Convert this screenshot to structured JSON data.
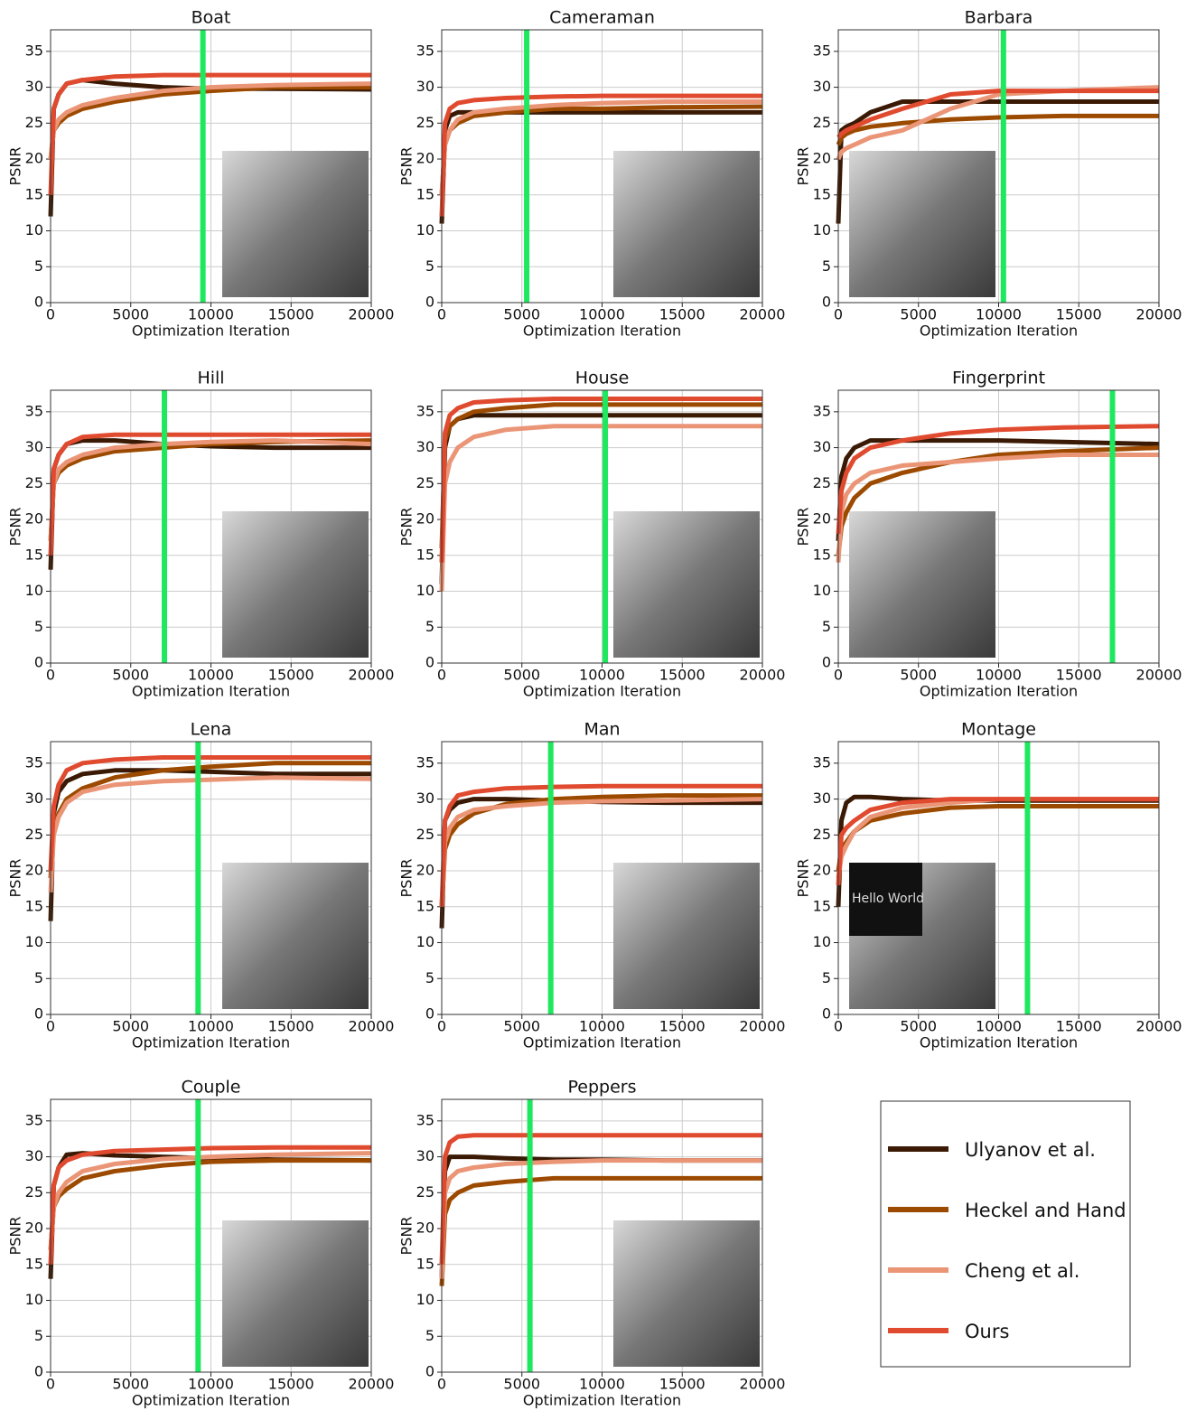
{
  "chart_data": [
    {
      "type": "line",
      "title": "Boat",
      "xlabel": "Optimization Iteration",
      "ylabel": "PSNR",
      "x": [
        0,
        200,
        500,
        1000,
        2000,
        4000,
        7000,
        10000,
        14000,
        20000
      ],
      "xlim": [
        0,
        20000
      ],
      "ylim": [
        0,
        38
      ],
      "xticks": [
        0,
        5000,
        10000,
        15000,
        20000
      ],
      "yticks": [
        0,
        5,
        10,
        15,
        20,
        25,
        30,
        35
      ],
      "grid": true,
      "vline": 9500,
      "vline_color": "#1de85e",
      "inset": "right",
      "series": [
        {
          "color": "#3b1a05",
          "values": [
            12,
            27,
            29,
            30.5,
            31,
            30.5,
            30,
            29.8,
            29.8,
            29.7
          ]
        },
        {
          "color": "#9c4a00",
          "values": [
            20,
            24,
            25,
            26,
            27,
            28,
            29,
            29.5,
            30,
            30
          ]
        },
        {
          "color": "#eb9577",
          "values": [
            20,
            24,
            25.5,
            26.5,
            27.5,
            28.5,
            29.5,
            30,
            30.3,
            30.5
          ]
        },
        {
          "color": "#e04a2f",
          "values": [
            15,
            27,
            29,
            30.5,
            31,
            31.5,
            31.7,
            31.7,
            31.7,
            31.7
          ]
        }
      ]
    },
    {
      "type": "line",
      "title": "Cameraman",
      "xlabel": "Optimization Iteration",
      "ylabel": "PSNR",
      "x": [
        0,
        200,
        500,
        1000,
        2000,
        4000,
        7000,
        10000,
        14000,
        20000
      ],
      "xlim": [
        0,
        20000
      ],
      "ylim": [
        0,
        38
      ],
      "xticks": [
        0,
        5000,
        10000,
        15000,
        20000
      ],
      "yticks": [
        0,
        5,
        10,
        15,
        20,
        25,
        30,
        35
      ],
      "grid": true,
      "vline": 5300,
      "vline_color": "#1de85e",
      "inset": "right",
      "series": [
        {
          "color": "#3b1a05",
          "values": [
            11,
            24,
            26,
            26.5,
            26.5,
            26.5,
            26.5,
            26.5,
            26.5,
            26.5
          ]
        },
        {
          "color": "#9c4a00",
          "values": [
            15,
            22,
            24,
            25,
            26,
            26.5,
            27,
            27,
            27.2,
            27.3
          ]
        },
        {
          "color": "#eb9577",
          "values": [
            15,
            22,
            24,
            25.5,
            26.5,
            27,
            27.5,
            27.8,
            28,
            28
          ]
        },
        {
          "color": "#e04a2f",
          "values": [
            12,
            25,
            27,
            27.8,
            28.2,
            28.5,
            28.7,
            28.8,
            28.8,
            28.8
          ]
        }
      ]
    },
    {
      "type": "line",
      "title": "Barbara",
      "xlabel": "Optimization Iteration",
      "ylabel": "PSNR",
      "x": [
        0,
        200,
        500,
        1000,
        2000,
        4000,
        7000,
        10000,
        14000,
        20000
      ],
      "xlim": [
        0,
        20000
      ],
      "ylim": [
        0,
        38
      ],
      "xticks": [
        0,
        5000,
        10000,
        15000,
        20000
      ],
      "yticks": [
        0,
        5,
        10,
        15,
        20,
        25,
        30,
        35
      ],
      "grid": true,
      "vline": 10300,
      "vline_color": "#1de85e",
      "inset": "left",
      "series": [
        {
          "color": "#3b1a05",
          "values": [
            11,
            24,
            24.5,
            25,
            26.5,
            28,
            28,
            28,
            28,
            28
          ]
        },
        {
          "color": "#9c4a00",
          "values": [
            22,
            23,
            23.5,
            24,
            24.5,
            25,
            25.5,
            25.8,
            26,
            26
          ]
        },
        {
          "color": "#eb9577",
          "values": [
            20,
            21,
            21.5,
            22,
            23,
            24,
            27,
            29,
            29.5,
            30
          ]
        },
        {
          "color": "#e04a2f",
          "values": [
            23,
            23.5,
            24,
            24.5,
            25.5,
            27,
            29,
            29.5,
            29.5,
            29.5
          ]
        }
      ]
    },
    {
      "type": "line",
      "title": "Hill",
      "xlabel": "Optimization Iteration",
      "ylabel": "PSNR",
      "x": [
        0,
        200,
        500,
        1000,
        2000,
        4000,
        7000,
        10000,
        14000,
        20000
      ],
      "xlim": [
        0,
        20000
      ],
      "ylim": [
        0,
        38
      ],
      "xticks": [
        0,
        5000,
        10000,
        15000,
        20000
      ],
      "yticks": [
        0,
        5,
        10,
        15,
        20,
        25,
        30,
        35
      ],
      "grid": true,
      "vline": 7100,
      "vline_color": "#1de85e",
      "inset": "right",
      "series": [
        {
          "color": "#3b1a05",
          "values": [
            13,
            27,
            29,
            30.5,
            31,
            31,
            30.5,
            30.2,
            30,
            30
          ]
        },
        {
          "color": "#9c4a00",
          "values": [
            17,
            25,
            26.5,
            27.5,
            28.5,
            29.5,
            30,
            30.5,
            30.8,
            31
          ]
        },
        {
          "color": "#eb9577",
          "values": [
            17,
            25,
            27,
            28,
            29,
            30,
            30.5,
            30.8,
            31,
            30.5
          ]
        },
        {
          "color": "#e04a2f",
          "values": [
            15,
            27,
            29,
            30.5,
            31.5,
            31.8,
            31.8,
            31.8,
            31.8,
            31.8
          ]
        }
      ]
    },
    {
      "type": "line",
      "title": "House",
      "xlabel": "Optimization Iteration",
      "ylabel": "PSNR",
      "x": [
        0,
        200,
        500,
        1000,
        2000,
        4000,
        7000,
        10000,
        14000,
        20000
      ],
      "xlim": [
        0,
        20000
      ],
      "ylim": [
        0,
        38
      ],
      "xticks": [
        0,
        5000,
        10000,
        15000,
        20000
      ],
      "yticks": [
        0,
        5,
        10,
        15,
        20,
        25,
        30,
        35
      ],
      "grid": true,
      "vline": 10200,
      "vline_color": "#1de85e",
      "inset": "right",
      "series": [
        {
          "color": "#3b1a05",
          "values": [
            11,
            30,
            33,
            34,
            34.5,
            34.5,
            34.5,
            34.5,
            34.5,
            34.5
          ]
        },
        {
          "color": "#9c4a00",
          "values": [
            16,
            31,
            33,
            34,
            35,
            35.5,
            36,
            36,
            36,
            36
          ]
        },
        {
          "color": "#eb9577",
          "values": [
            10,
            25,
            28,
            30,
            31.5,
            32.5,
            33,
            33,
            33,
            33
          ]
        },
        {
          "color": "#e04a2f",
          "values": [
            14,
            32,
            34.5,
            35.5,
            36.3,
            36.6,
            36.8,
            36.8,
            36.8,
            36.8
          ]
        }
      ]
    },
    {
      "type": "line",
      "title": "Fingerprint",
      "xlabel": "Optimization Iteration",
      "ylabel": "PSNR",
      "x": [
        0,
        200,
        500,
        1000,
        2000,
        4000,
        7000,
        10000,
        14000,
        20000
      ],
      "xlim": [
        0,
        20000
      ],
      "ylim": [
        0,
        38
      ],
      "xticks": [
        0,
        5000,
        10000,
        15000,
        20000
      ],
      "yticks": [
        0,
        5,
        10,
        15,
        20,
        25,
        30,
        35
      ],
      "grid": true,
      "vline": 17100,
      "vline_color": "#1de85e",
      "inset": "left",
      "series": [
        {
          "color": "#3b1a05",
          "values": [
            17,
            26,
            28.5,
            30,
            31,
            31,
            31,
            31,
            30.8,
            30.5
          ]
        },
        {
          "color": "#9c4a00",
          "values": [
            15,
            19,
            21,
            23,
            25,
            26.5,
            28,
            29,
            29.5,
            30
          ]
        },
        {
          "color": "#eb9577",
          "values": [
            14,
            21,
            23.5,
            25,
            26.5,
            27.5,
            28,
            28.5,
            29,
            29
          ]
        },
        {
          "color": "#e04a2f",
          "values": [
            18,
            24,
            26.5,
            28.5,
            30,
            31,
            32,
            32.5,
            32.8,
            33
          ]
        }
      ]
    },
    {
      "type": "line",
      "title": "Lena",
      "xlabel": "Optimization Iteration",
      "ylabel": "PSNR",
      "x": [
        0,
        200,
        500,
        1000,
        2000,
        4000,
        7000,
        10000,
        14000,
        20000
      ],
      "xlim": [
        0,
        20000
      ],
      "ylim": [
        0,
        38
      ],
      "xticks": [
        0,
        5000,
        10000,
        15000,
        20000
      ],
      "yticks": [
        0,
        5,
        10,
        15,
        20,
        25,
        30,
        35
      ],
      "grid": true,
      "vline": 9200,
      "vline_color": "#1de85e",
      "inset": "right",
      "series": [
        {
          "color": "#3b1a05",
          "values": [
            13,
            28,
            31,
            32.5,
            33.5,
            34,
            34,
            33.8,
            33.5,
            33.5
          ]
        },
        {
          "color": "#9c4a00",
          "values": [
            19,
            26,
            28,
            30,
            31.5,
            33,
            34,
            34.5,
            35,
            35
          ]
        },
        {
          "color": "#eb9577",
          "values": [
            17,
            25,
            27.5,
            29.5,
            31,
            32,
            32.5,
            32.7,
            33,
            32.8
          ]
        },
        {
          "color": "#e04a2f",
          "values": [
            20,
            29,
            32,
            34,
            35,
            35.5,
            35.8,
            35.8,
            35.8,
            35.8
          ]
        }
      ]
    },
    {
      "type": "line",
      "title": "Man",
      "xlabel": "Optimization Iteration",
      "ylabel": "PSNR",
      "x": [
        0,
        200,
        500,
        1000,
        2000,
        4000,
        7000,
        10000,
        14000,
        20000
      ],
      "xlim": [
        0,
        20000
      ],
      "ylim": [
        0,
        38
      ],
      "xticks": [
        0,
        5000,
        10000,
        15000,
        20000
      ],
      "yticks": [
        0,
        5,
        10,
        15,
        20,
        25,
        30,
        35
      ],
      "grid": true,
      "vline": 6800,
      "vline_color": "#1de85e",
      "inset": "right",
      "series": [
        {
          "color": "#3b1a05",
          "values": [
            12,
            27,
            28.5,
            29.5,
            30,
            30,
            29.8,
            29.6,
            29.5,
            29.5
          ]
        },
        {
          "color": "#9c4a00",
          "values": [
            15,
            23,
            25,
            26.5,
            28,
            29.3,
            30,
            30.3,
            30.5,
            30.5
          ]
        },
        {
          "color": "#eb9577",
          "values": [
            15,
            24,
            26,
            27.5,
            28.5,
            29,
            29.5,
            29.7,
            29.8,
            30
          ]
        },
        {
          "color": "#e04a2f",
          "values": [
            15,
            27,
            29,
            30.5,
            31,
            31.5,
            31.7,
            31.8,
            31.8,
            31.8
          ]
        }
      ]
    },
    {
      "type": "line",
      "title": "Montage",
      "xlabel": "Optimization Iteration",
      "ylabel": "PSNR",
      "x": [
        0,
        200,
        500,
        1000,
        2000,
        4000,
        7000,
        10000,
        14000,
        20000
      ],
      "xlim": [
        0,
        20000
      ],
      "ylim": [
        0,
        38
      ],
      "xticks": [
        0,
        5000,
        10000,
        15000,
        20000
      ],
      "yticks": [
        0,
        5,
        10,
        15,
        20,
        25,
        30,
        35
      ],
      "grid": true,
      "vline": 11800,
      "vline_color": "#1de85e",
      "inset": "left",
      "inset_text": "Hello World",
      "series": [
        {
          "color": "#3b1a05",
          "values": [
            15,
            27,
            29.5,
            30.3,
            30.3,
            30,
            29.8,
            29.8,
            29.8,
            29.8
          ]
        },
        {
          "color": "#9c4a00",
          "values": [
            20,
            23,
            24,
            25.5,
            27,
            28,
            28.8,
            29,
            29,
            29
          ]
        },
        {
          "color": "#eb9577",
          "values": [
            19,
            22,
            23.5,
            25.5,
            27.5,
            28.8,
            29.5,
            30,
            30,
            30
          ]
        },
        {
          "color": "#e04a2f",
          "values": [
            18,
            25,
            26,
            27,
            28.5,
            29.5,
            30,
            30,
            30,
            30
          ]
        }
      ]
    },
    {
      "type": "line",
      "title": "Couple",
      "xlabel": "Optimization Iteration",
      "ylabel": "PSNR",
      "x": [
        0,
        200,
        500,
        1000,
        2000,
        4000,
        7000,
        10000,
        14000,
        20000
      ],
      "xlim": [
        0,
        20000
      ],
      "ylim": [
        0,
        38
      ],
      "xticks": [
        0,
        5000,
        10000,
        15000,
        20000
      ],
      "yticks": [
        0,
        5,
        10,
        15,
        20,
        25,
        30,
        35
      ],
      "grid": true,
      "vline": 9200,
      "vline_color": "#1de85e",
      "inset": "right",
      "series": [
        {
          "color": "#3b1a05",
          "values": [
            13,
            26,
            28.5,
            30.3,
            30.5,
            30.2,
            30,
            29.8,
            29.6,
            29.5
          ]
        },
        {
          "color": "#9c4a00",
          "values": [
            17,
            23,
            24.5,
            25.5,
            27,
            28,
            28.8,
            29.3,
            29.5,
            29.5
          ]
        },
        {
          "color": "#eb9577",
          "values": [
            17,
            23,
            25,
            26.5,
            28,
            29,
            29.7,
            30,
            30.3,
            30.5
          ]
        },
        {
          "color": "#e04a2f",
          "values": [
            15,
            26,
            28.5,
            29.5,
            30.3,
            30.8,
            31,
            31.2,
            31.3,
            31.3
          ]
        }
      ]
    },
    {
      "type": "line",
      "title": "Peppers",
      "xlabel": "Optimization Iteration",
      "ylabel": "PSNR",
      "x": [
        0,
        200,
        500,
        1000,
        2000,
        4000,
        7000,
        10000,
        14000,
        20000
      ],
      "xlim": [
        0,
        20000
      ],
      "ylim": [
        0,
        38
      ],
      "xticks": [
        0,
        5000,
        10000,
        15000,
        20000
      ],
      "yticks": [
        0,
        5,
        10,
        15,
        20,
        25,
        30,
        35
      ],
      "grid": true,
      "vline": 5500,
      "vline_color": "#1de85e",
      "inset": "right",
      "series": [
        {
          "color": "#3b1a05",
          "values": [
            13,
            28,
            30,
            30,
            30,
            29.8,
            29.6,
            29.6,
            29.5,
            29.5
          ]
        },
        {
          "color": "#9c4a00",
          "values": [
            12,
            22,
            24,
            25,
            26,
            26.5,
            27,
            27,
            27,
            27
          ]
        },
        {
          "color": "#eb9577",
          "values": [
            13,
            25,
            27,
            28,
            28.5,
            29,
            29.3,
            29.5,
            29.5,
            29.5
          ]
        },
        {
          "color": "#e04a2f",
          "values": [
            15,
            30,
            32,
            32.8,
            33,
            33,
            33,
            33,
            33,
            33
          ]
        }
      ]
    }
  ],
  "legend": [
    {
      "name": "Ulyanov et al.",
      "color": "#3b1a05"
    },
    {
      "name": "Heckel and Hand",
      "color": "#9c4a00"
    },
    {
      "name": "Cheng et al.",
      "color": "#eb9577"
    },
    {
      "name": "Ours",
      "color": "#e04a2f"
    }
  ]
}
